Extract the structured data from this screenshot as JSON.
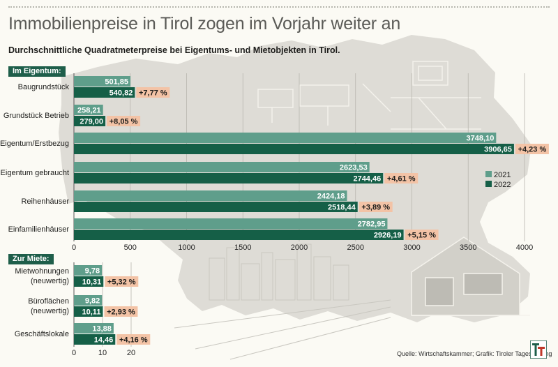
{
  "title": "Immobilienpreise in Tirol zogen im Vorjahr weiter an",
  "subtitle": "Durchschnittliche Quadratmeterpreise bei Eigentums- und Mietobjekten in Tirol.",
  "source": "Quelle: Wirtschaftskammer; Grafik: Tiroler Tageszeitung",
  "logo_text": "TT",
  "colors": {
    "s2021": "#5f9e8b",
    "s2022": "#155f47",
    "pct_bg": "#f3c3a6",
    "section_bg": "#1e5e4a"
  },
  "chart_data": [
    {
      "type": "bar",
      "orientation": "horizontal",
      "section_label": "Im Eigentum:",
      "categories": [
        "Baugrundstück",
        "Grundstück Betrieb",
        "Eigentum/Erstbezug",
        "Eigentum gebraucht",
        "Reihenhäuser",
        "Einfamilienhäuser"
      ],
      "series": [
        {
          "name": "2021",
          "values": [
            501.85,
            258.21,
            3748.1,
            2623.53,
            2424.18,
            2782.95
          ],
          "labels": [
            "501,85",
            "258,21",
            "3748,10",
            "2623,53",
            "2424,18",
            "2782,95"
          ]
        },
        {
          "name": "2022",
          "values": [
            540.82,
            279.0,
            3906.65,
            2744.46,
            2518.44,
            2926.19
          ],
          "labels": [
            "540,82",
            "279,00",
            "3906,65",
            "2744,46",
            "2518,44",
            "2926,19"
          ]
        }
      ],
      "changes": [
        "+7,77 %",
        "+8,05 %",
        "+4,23 %",
        "+4,61 %",
        "+3,89 %",
        "+5,15 %"
      ],
      "xlim": [
        0,
        4000
      ],
      "ticks": [
        "0",
        "500",
        "1000",
        "1500",
        "2000",
        "2500",
        "3000",
        "3500",
        "4000"
      ],
      "legend_placement": "right",
      "grid": true
    },
    {
      "type": "bar",
      "orientation": "horizontal",
      "section_label": "Zur Miete:",
      "categories": [
        [
          "Mietwohnungen",
          "(neuwertig)"
        ],
        [
          "Büroflächen",
          "(neuwertig)"
        ],
        [
          "Geschäftslokale"
        ]
      ],
      "series": [
        {
          "name": "2021",
          "values": [
            9.78,
            9.82,
            13.88
          ],
          "labels": [
            "9,78",
            "9,82",
            "13,88"
          ]
        },
        {
          "name": "2022",
          "values": [
            10.31,
            10.11,
            14.46
          ],
          "labels": [
            "10,31",
            "10,11",
            "14,46"
          ]
        }
      ],
      "changes": [
        "+5,32 %",
        "+2,93 %",
        "+4,16 %"
      ],
      "xlim": [
        0,
        20
      ],
      "ticks": [
        "0",
        "10",
        "20"
      ],
      "grid": true
    }
  ]
}
